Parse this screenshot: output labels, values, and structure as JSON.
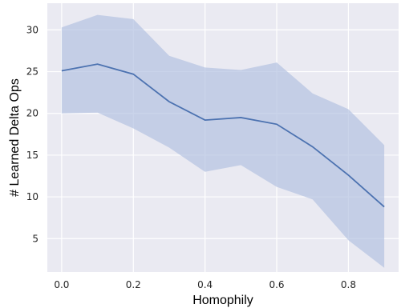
{
  "chart_data": {
    "type": "line",
    "title": "",
    "xlabel": "Homophily",
    "ylabel": "# Learned Delta Ops",
    "xlim": [
      -0.04,
      0.94
    ],
    "ylim": [
      1,
      33.2
    ],
    "x_ticks": [
      0.0,
      0.2,
      0.4,
      0.6,
      0.8
    ],
    "x_tick_labels": [
      "0.0",
      "0.2",
      "0.4",
      "0.6",
      "0.8"
    ],
    "y_ticks": [
      5,
      10,
      15,
      20,
      25,
      30
    ],
    "y_tick_labels": [
      "5",
      "10",
      "15",
      "20",
      "25",
      "30"
    ],
    "grid": true,
    "legend": "none",
    "series": [
      {
        "x": [
          0.0,
          0.1,
          0.2,
          0.3,
          0.4,
          0.5,
          0.6,
          0.7,
          0.8,
          0.9
        ],
        "values": [
          25.1,
          25.9,
          24.7,
          21.4,
          19.2,
          19.5,
          18.7,
          16.0,
          12.6,
          8.8
        ],
        "upper": [
          30.3,
          31.8,
          31.3,
          26.9,
          25.5,
          25.2,
          26.1,
          22.4,
          20.5,
          16.2
        ],
        "lower": [
          20.0,
          20.1,
          18.2,
          15.9,
          13.0,
          13.8,
          11.2,
          9.7,
          4.8,
          1.5
        ]
      }
    ],
    "colors": {
      "line": "#4c72b0",
      "band": "#b4c2e1",
      "background": "#eaeaf2",
      "grid": "#ffffff"
    }
  }
}
